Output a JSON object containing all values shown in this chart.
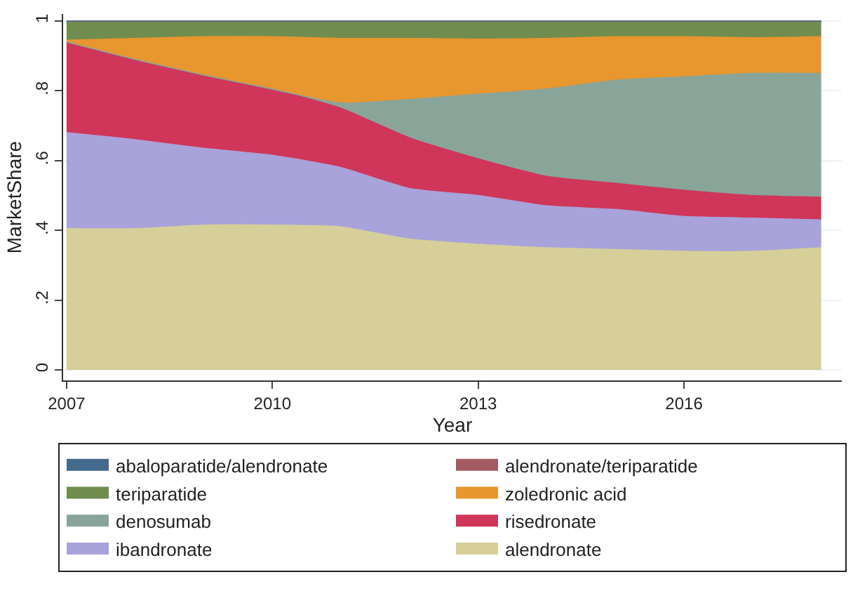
{
  "chart_data": {
    "type": "area",
    "stacked": true,
    "xlabel": "Year",
    "ylabel": "MarketShare",
    "x": [
      2007,
      2008,
      2009,
      2010,
      2011,
      2012,
      2013,
      2014,
      2015,
      2016,
      2017,
      2018
    ],
    "xlim": [
      2006.95,
      2018.3
    ],
    "xticks": [
      2007,
      2010,
      2013,
      2016
    ],
    "ylim": [
      -0.03,
      1.02
    ],
    "yticks": [
      {
        "value": 0,
        "label": "0"
      },
      {
        "value": 0.2,
        "label": ".2"
      },
      {
        "value": 0.4,
        "label": ".4"
      },
      {
        "value": 0.6,
        "label": ".6"
      },
      {
        "value": 0.8,
        "label": ".8"
      },
      {
        "value": 1,
        "label": "1"
      }
    ],
    "grid": "y",
    "legend": "bottom",
    "series": [
      {
        "name": "alendronate",
        "color": "#d6cf99",
        "values": [
          0.405,
          0.405,
          0.415,
          0.415,
          0.41,
          0.375,
          0.36,
          0.35,
          0.345,
          0.34,
          0.34,
          0.35
        ]
      },
      {
        "name": "ibandronate",
        "color": "#a8a3da",
        "values": [
          0.275,
          0.255,
          0.22,
          0.2,
          0.17,
          0.145,
          0.14,
          0.12,
          0.115,
          0.1,
          0.095,
          0.08
        ]
      },
      {
        "name": "risedronate",
        "color": "#cf365a",
        "values": [
          0.26,
          0.23,
          0.21,
          0.19,
          0.17,
          0.145,
          0.105,
          0.085,
          0.075,
          0.075,
          0.065,
          0.065
        ]
      },
      {
        "name": "denosumab",
        "color": "#89a59a",
        "values": [
          0,
          0,
          0,
          0,
          0.015,
          0.11,
          0.185,
          0.25,
          0.295,
          0.325,
          0.35,
          0.355
        ]
      },
      {
        "name": "zoledronic acid",
        "color": "#e8962e",
        "values": [
          0.005,
          0.06,
          0.11,
          0.15,
          0.185,
          0.175,
          0.158,
          0.145,
          0.125,
          0.115,
          0.102,
          0.105
        ]
      },
      {
        "name": "teriparatide",
        "color": "#708d4f",
        "values": [
          0.053,
          0.048,
          0.043,
          0.043,
          0.048,
          0.048,
          0.05,
          0.048,
          0.043,
          0.043,
          0.046,
          0.043
        ]
      },
      {
        "name": "alendronate/teriparatide",
        "color": "#a35a62",
        "values": [
          0.002,
          0.002,
          0.002,
          0.002,
          0.002,
          0.002,
          0.002,
          0.002,
          0.002,
          0.002,
          0.002,
          0.002
        ]
      },
      {
        "name": "abaloparatide/alendronate",
        "color": "#446a8e",
        "values": [
          null,
          null,
          null,
          null,
          null,
          null,
          null,
          null,
          null,
          null,
          null,
          null
        ]
      }
    ]
  }
}
